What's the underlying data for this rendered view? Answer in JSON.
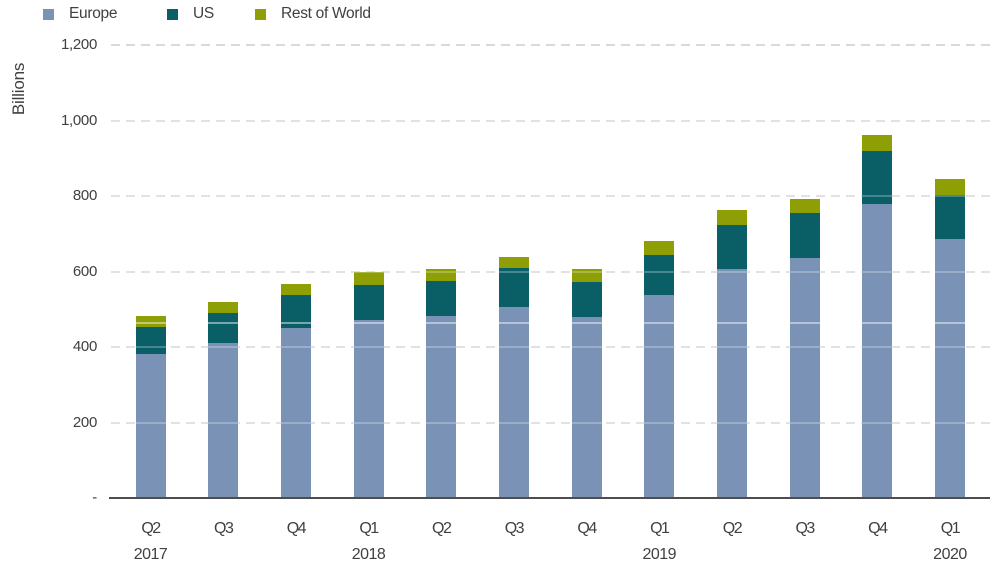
{
  "chart_data": {
    "type": "bar",
    "stacked": true,
    "title": "",
    "ylabel": "Billions",
    "xlabel": "",
    "ylim": [
      0,
      1200
    ],
    "ytick_interval": 200,
    "grid": "horizontal-dashed",
    "legend_position": "top-left",
    "background": "#ffffff",
    "text_color": "#404040",
    "gridline_color": "#d9d9d9",
    "axis_line_color": "#4d4d4d",
    "overlay_artifact_value": 464,
    "y_ticks": [
      {
        "label": "1,200",
        "value": 1200
      },
      {
        "label": "1,000",
        "value": 1000
      },
      {
        "label": "800",
        "value": 800
      },
      {
        "label": "600",
        "value": 600
      },
      {
        "label": "400",
        "value": 400
      },
      {
        "label": "200",
        "value": 200
      },
      {
        "label": "-",
        "value": 0
      }
    ],
    "categories": [
      {
        "quarter": "Q2",
        "year": "2017"
      },
      {
        "quarter": "Q3",
        "year": ""
      },
      {
        "quarter": "Q4",
        "year": ""
      },
      {
        "quarter": "Q1",
        "year": "2018"
      },
      {
        "quarter": "Q2",
        "year": ""
      },
      {
        "quarter": "Q3",
        "year": ""
      },
      {
        "quarter": "Q4",
        "year": ""
      },
      {
        "quarter": "Q1",
        "year": "2019"
      },
      {
        "quarter": "Q2",
        "year": ""
      },
      {
        "quarter": "Q3",
        "year": ""
      },
      {
        "quarter": "Q4",
        "year": ""
      },
      {
        "quarter": "Q1",
        "year": "2020"
      }
    ],
    "series": [
      {
        "name": "Europe",
        "color": "#7a92b6",
        "values": [
          382,
          411,
          451,
          472,
          482,
          506,
          480,
          539,
          607,
          635,
          778,
          685
        ]
      },
      {
        "name": "US",
        "color": "#0a5e66",
        "values": [
          72,
          80,
          87,
          93,
          93,
          104,
          93,
          105,
          117,
          119,
          140,
          119
        ]
      },
      {
        "name": "Rest of World",
        "color": "#8d9f05",
        "values": [
          27,
          27,
          28,
          34,
          33,
          28,
          35,
          37,
          39,
          38,
          44,
          40
        ]
      }
    ],
    "totals": [
      481,
      518,
      566,
      599,
      608,
      638,
      608,
      681,
      763,
      792,
      962,
      844
    ]
  }
}
